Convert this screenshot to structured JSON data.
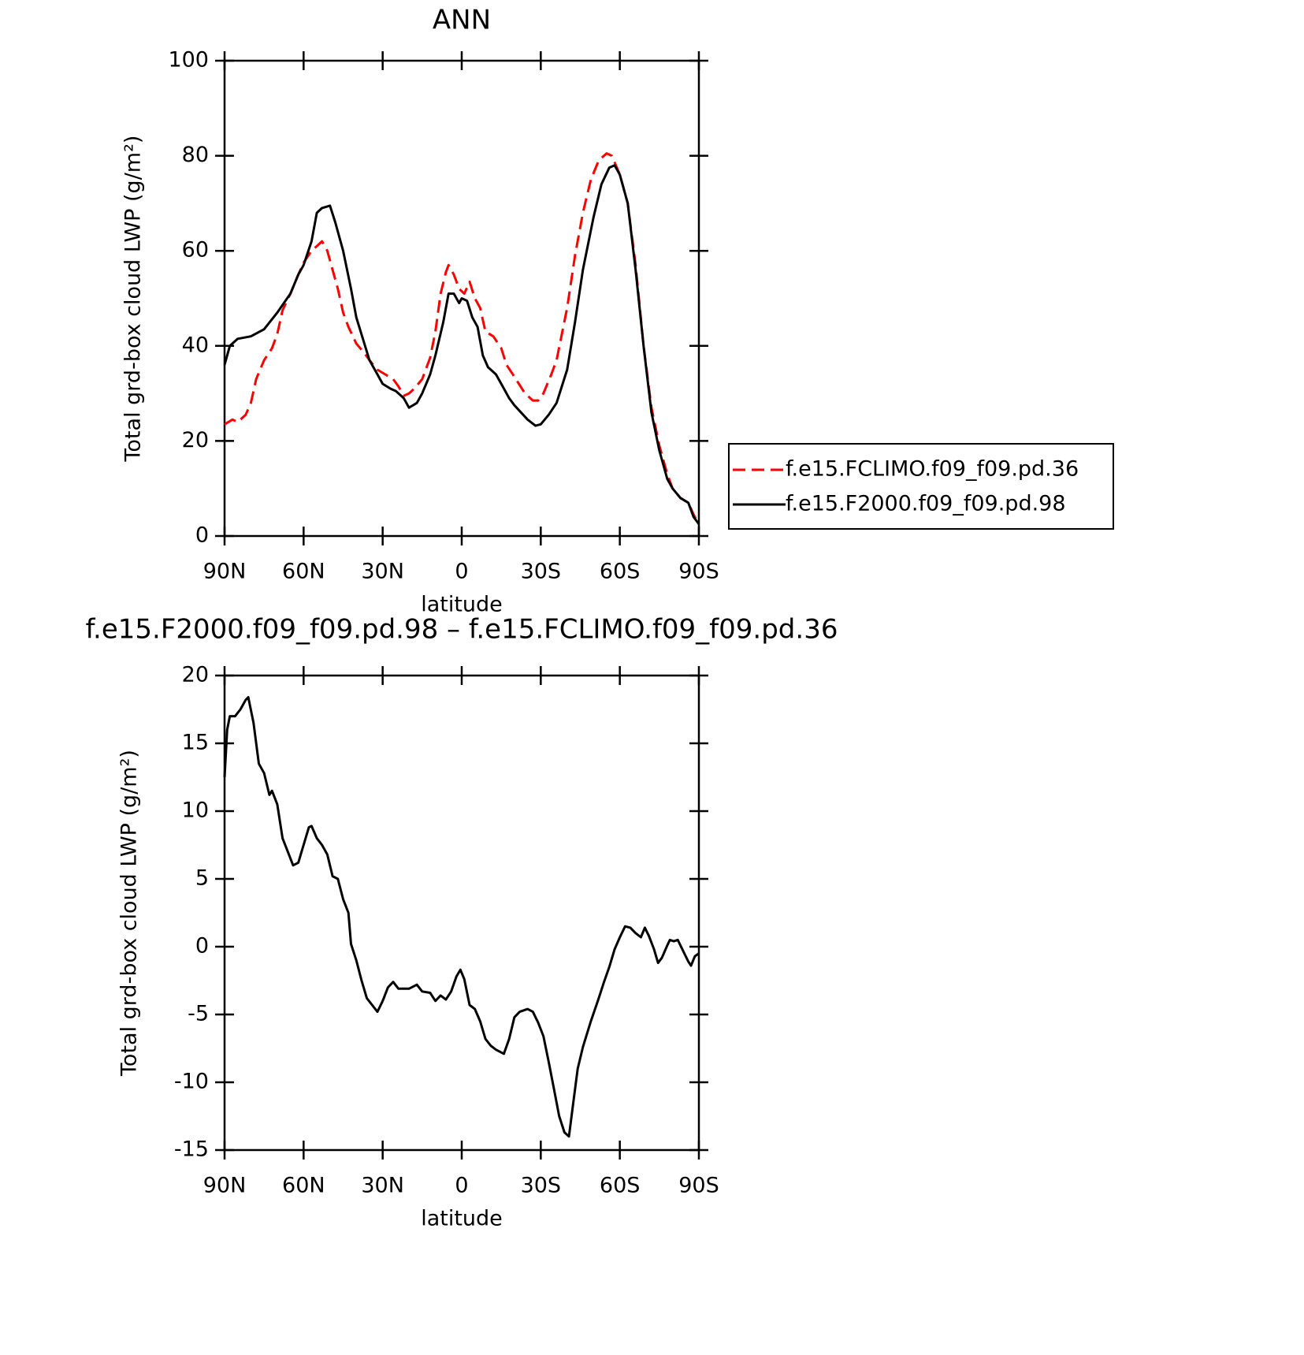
{
  "chart_data": [
    {
      "type": "line",
      "title": "ANN",
      "xlabel": "latitude",
      "ylabel": "Total grd-box cloud LWP (g/m²)",
      "xlim": [
        90,
        -90
      ],
      "xticks": [
        {
          "value": 90,
          "label": "90N"
        },
        {
          "value": 60,
          "label": "60N"
        },
        {
          "value": 30,
          "label": "30N"
        },
        0,
        {
          "value": -30,
          "label": "30S"
        },
        {
          "value": -60,
          "label": "60S"
        },
        {
          "value": -90,
          "label": "90S"
        }
      ],
      "ylim": [
        0,
        100
      ],
      "yticks": [
        0,
        20,
        40,
        60,
        80,
        100
      ],
      "legend": "right",
      "series": [
        {
          "name": "f.e15.FCLIMO.f09_f09.pd.36",
          "color": "#ff0000",
          "linestyle": "dashed",
          "x": [
            90,
            87,
            85,
            82,
            80,
            78,
            75,
            72,
            70,
            68,
            65,
            62,
            60,
            57,
            55,
            53,
            51,
            49,
            47,
            45,
            43,
            40,
            37,
            35,
            32,
            29,
            26,
            24,
            22,
            20,
            18,
            15,
            12,
            10,
            8,
            6,
            5,
            3,
            1,
            -1,
            -3,
            -5,
            -7,
            -9,
            -12,
            -15,
            -17,
            -20,
            -24,
            -27,
            -29,
            -31,
            -34,
            -36,
            -40,
            -43,
            -46,
            -49,
            -52,
            -55,
            -57,
            -60,
            -63,
            -66,
            -69,
            -72,
            -75,
            -78,
            -80,
            -83,
            -86,
            -88,
            -90
          ],
          "values": [
            23.5,
            24.5,
            24,
            25.5,
            28,
            33,
            37,
            39.5,
            42.5,
            47.5,
            51,
            55,
            57.5,
            60,
            61,
            62,
            60,
            56,
            52,
            47,
            44,
            40.5,
            38.5,
            37,
            35,
            34,
            33,
            31.5,
            29.5,
            30,
            31,
            33,
            37.5,
            43,
            51,
            55.5,
            57,
            55,
            52,
            51,
            53.5,
            50,
            48,
            43,
            42,
            39.5,
            36,
            33.5,
            30,
            28.5,
            28.5,
            30,
            34,
            37,
            48,
            59,
            68,
            75,
            79,
            80.5,
            80,
            76,
            70,
            57,
            40,
            27,
            19,
            13,
            10,
            8,
            7,
            4.5,
            2.5
          ]
        },
        {
          "name": "f.e15.F2000.f09_f09.pd.98",
          "color": "#000000",
          "linestyle": "solid",
          "x": [
            90,
            88,
            85,
            80,
            75,
            70,
            65,
            62,
            60,
            57,
            55,
            53,
            50,
            48,
            45,
            42,
            40,
            35,
            30,
            27,
            25,
            22,
            20,
            17,
            15,
            12,
            10,
            7,
            5,
            3,
            1,
            0,
            -2,
            -4,
            -6,
            -8,
            -10,
            -13,
            -15,
            -18,
            -20,
            -25,
            -28,
            -30,
            -33,
            -36,
            -40,
            -43,
            -46,
            -50,
            -53,
            -56,
            -58,
            -60,
            -63,
            -66,
            -69,
            -72,
            -75,
            -78,
            -80,
            -83,
            -86,
            -88,
            -90
          ],
          "values": [
            36,
            40,
            41.5,
            42,
            43.5,
            47,
            51,
            55,
            57,
            62,
            68,
            69,
            69.5,
            66,
            60,
            52,
            46,
            37,
            32,
            31,
            30.5,
            29,
            27,
            28,
            30,
            34,
            38,
            45,
            51,
            51,
            49,
            50,
            49.5,
            46,
            44,
            38,
            35.5,
            34,
            32,
            29,
            27.5,
            24.5,
            23.2,
            23.5,
            25.5,
            28,
            35,
            45,
            56,
            67,
            74,
            77.5,
            78,
            76,
            70,
            56,
            40,
            26,
            18,
            12,
            10,
            8,
            7,
            4,
            2.5
          ]
        }
      ]
    },
    {
      "type": "line",
      "title": "f.e15.F2000.f09_f09.pd.98 – f.e15.FCLIMO.f09_f09.pd.36",
      "xlabel": "latitude",
      "ylabel": "Total grd-box cloud LWP (g/m²)",
      "xlim": [
        90,
        -90
      ],
      "xticks": [
        {
          "value": 90,
          "label": "90N"
        },
        {
          "value": 60,
          "label": "60N"
        },
        {
          "value": 30,
          "label": "30N"
        },
        0,
        {
          "value": -30,
          "label": "30S"
        },
        {
          "value": -60,
          "label": "60S"
        },
        {
          "value": -90,
          "label": "90S"
        }
      ],
      "ylim": [
        -15,
        20
      ],
      "yticks": [
        -15,
        -10,
        -5,
        0,
        5,
        10,
        15,
        20
      ],
      "color": "#000000",
      "x": [
        90,
        89,
        88,
        86,
        84,
        82,
        81,
        79,
        77,
        75,
        73,
        72,
        70,
        68,
        66,
        64,
        62,
        60,
        58,
        57,
        55,
        53,
        51,
        49,
        47,
        45,
        43,
        42,
        40,
        38,
        36,
        34,
        32,
        30,
        28,
        26,
        24,
        20,
        17,
        15,
        12,
        10,
        8,
        6,
        4,
        2,
        0.5,
        -1,
        -3,
        -5,
        -7,
        -9,
        -11,
        -13,
        -16,
        -18,
        -20,
        -22,
        -25,
        -27,
        -29,
        -31,
        -33,
        -35,
        -37,
        -39,
        -40.7,
        -42,
        -44,
        -46,
        -49,
        -52,
        -54,
        -56,
        -58,
        -60,
        -62,
        -64,
        -66,
        -68,
        -69.5,
        -71,
        -73,
        -74.5,
        -76,
        -78,
        -79,
        -80.5,
        -82,
        -84,
        -86,
        -87,
        -88.5,
        -90
      ],
      "values": [
        12.5,
        16,
        17,
        17,
        17.5,
        18.2,
        18.4,
        16.5,
        13.5,
        12.8,
        11.2,
        11.5,
        10.5,
        8,
        7,
        6,
        6.2,
        7.5,
        8.8,
        8.9,
        8,
        7.5,
        6.8,
        5.2,
        5,
        3.5,
        2.5,
        0.2,
        -1,
        -2.5,
        -3.8,
        -4.3,
        -4.8,
        -4,
        -3,
        -2.6,
        -3.1,
        -3.1,
        -2.8,
        -3.3,
        -3.4,
        -4,
        -3.6,
        -3.9,
        -3.3,
        -2.2,
        -1.7,
        -2.4,
        -4.3,
        -4.6,
        -5.5,
        -6.8,
        -7.3,
        -7.6,
        -7.9,
        -6.8,
        -5.2,
        -4.8,
        -4.6,
        -4.8,
        -5.6,
        -6.6,
        -8.5,
        -10.5,
        -12.5,
        -13.7,
        -14,
        -12,
        -9,
        -7.4,
        -5.5,
        -3.8,
        -2.6,
        -1.5,
        -0.2,
        0.7,
        1.5,
        1.4,
        1,
        0.7,
        1.4,
        0.8,
        -0.2,
        -1.2,
        -0.8,
        0.1,
        0.5,
        0.4,
        0.5,
        -0.3,
        -1.1,
        -1.4,
        -0.7,
        -0.5
      ]
    }
  ]
}
